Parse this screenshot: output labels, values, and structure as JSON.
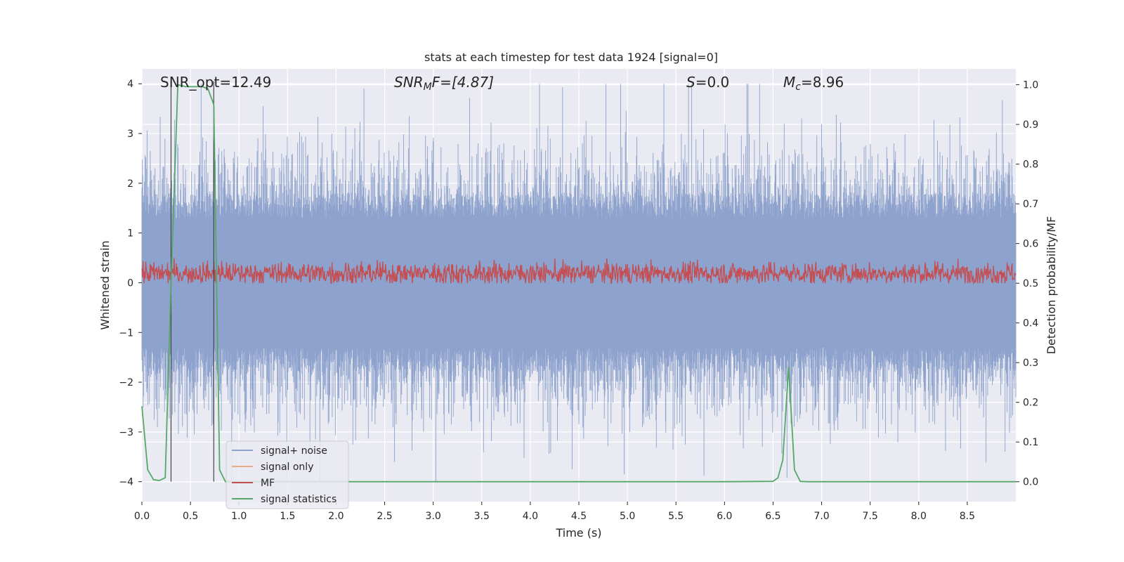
{
  "chart_data": {
    "type": "line",
    "title": "stats at each timestep for test data 1924 [signal=0]",
    "xlabel": "Time (s)",
    "ylabel_left": "Whitened strain",
    "ylabel_right": "Detection probability/MF",
    "xlim": [
      0.0,
      9.0
    ],
    "ylim_left": [
      -4.4,
      4.3
    ],
    "ylim_right": [
      -0.05,
      1.04
    ],
    "xticks": [
      0.0,
      0.5,
      1.0,
      1.5,
      2.0,
      2.5,
      3.0,
      3.5,
      4.0,
      4.5,
      5.0,
      5.5,
      6.0,
      6.5,
      7.0,
      7.5,
      8.0,
      8.5
    ],
    "xtick_labels": [
      "0.0",
      "0.5",
      "1.0",
      "1.5",
      "2.0",
      "2.5",
      "3.0",
      "3.5",
      "4.0",
      "4.5",
      "5.0",
      "5.5",
      "6.0",
      "6.5",
      "7.0",
      "7.5",
      "8.0",
      "8.5"
    ],
    "yticks_left": [
      4,
      3,
      2,
      1,
      0,
      -1,
      -2,
      -3,
      -4
    ],
    "ytick_labels_left": [
      "4",
      "3",
      "2",
      "1",
      "0",
      "−1",
      "−2",
      "−3",
      "−4"
    ],
    "yticks_right": [
      1.0,
      0.9,
      0.8,
      0.7,
      0.6,
      0.5,
      0.4,
      0.3,
      0.2,
      0.1,
      0.0
    ],
    "ytick_labels_right": [
      "1.0",
      "0.9",
      "0.8",
      "0.7",
      "0.6",
      "0.5",
      "0.4",
      "0.3",
      "0.2",
      "0.1",
      "0.0"
    ],
    "grid": true,
    "annotations": {
      "snr_opt": "SNR_opt=12.49",
      "snr_mf_prefix": "SNR",
      "snr_mf_sub": "M",
      "snr_mf_suffix": "F=[4.87]",
      "s_prefix": "S",
      "s_value": "=0.0",
      "mc_prefix": "M",
      "mc_sub": "c",
      "mc_value": "=8.96"
    },
    "legend": {
      "position": "lower-left",
      "entries": [
        {
          "label": "signal+ noise",
          "color": "#8da2cc"
        },
        {
          "label": "signal only",
          "color": "#e8a98c"
        },
        {
          "label": "MF",
          "color": "#c44e52"
        },
        {
          "label": "signal statistics",
          "color": "#55a868"
        }
      ]
    },
    "vertical_markers": [
      0.3,
      0.74
    ],
    "series": [
      {
        "name": "signal+ noise",
        "axis": "left",
        "color": "#8da2cc",
        "description": "whitened strain noise, roughly within -4 to 4",
        "amplitude_range": [
          -4.0,
          4.0
        ]
      },
      {
        "name": "MF",
        "axis": "right",
        "color": "#c44e52",
        "description": "matched filter output fluctuating around 0.53",
        "range": [
          0.5,
          0.6
        ]
      },
      {
        "name": "signal statistics",
        "axis": "right",
        "color": "#55a868",
        "x": [
          0.0,
          0.06,
          0.12,
          0.18,
          0.24,
          0.3,
          0.37,
          0.45,
          0.55,
          0.62,
          0.68,
          0.74,
          0.8,
          0.86,
          1.0,
          2.0,
          3.0,
          4.0,
          5.0,
          6.0,
          6.5,
          6.55,
          6.6,
          6.66,
          6.72,
          6.78,
          6.86,
          7.0,
          8.0,
          9.0
        ],
        "y": [
          0.19,
          0.03,
          0.005,
          0.003,
          0.01,
          0.5,
          1.0,
          0.995,
          0.995,
          0.995,
          0.99,
          0.95,
          0.03,
          0.0,
          0.0,
          0.0,
          0.0,
          0.0,
          0.0,
          0.0,
          0.001,
          0.01,
          0.055,
          0.29,
          0.03,
          0.001,
          0.0,
          0.0,
          0.0,
          0.0
        ]
      }
    ]
  }
}
